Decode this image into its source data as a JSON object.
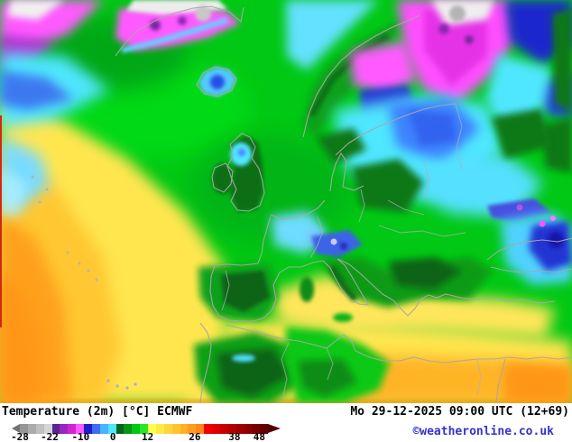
{
  "legend": {
    "title": "Temperature (2m) [°C] ECMWF",
    "datetime": "Mo 29-12-2025 09:00 UTC (12+69)",
    "copyright": "©weatheronline.co.uk",
    "copyright_color": "#3333cc",
    "text_color": "#000000",
    "ticks": [
      "-28",
      "-22",
      "-10",
      "0",
      "12",
      "26",
      "38",
      "48"
    ],
    "tick_positions": [
      0.0,
      0.12,
      0.245,
      0.375,
      0.515,
      0.705,
      0.865,
      0.965
    ],
    "arrow_left_color": "#737373",
    "arrow_right_color": "#500000",
    "colors": [
      "#969696",
      "#ababab",
      "#c0c0c0",
      "#d5d5d5",
      "#5a2391",
      "#9628be",
      "#d223d2",
      "#ff5aff",
      "#1e1ec8",
      "#3c6ef0",
      "#46b4ff",
      "#50e6ff",
      "#06641e",
      "#0a9614",
      "#00c814",
      "#28e628",
      "#ffff50",
      "#ffeb46",
      "#ffd73c",
      "#ffc332",
      "#ffaf28",
      "#ff9b1e",
      "#ff8714",
      "#f00000",
      "#dc0000",
      "#c80000",
      "#b40000",
      "#a00000",
      "#8c0000",
      "#780000",
      "#640000"
    ]
  },
  "map": {
    "palette": {
      "ocean_green": "#00c814",
      "warm_yellow": "#ffe650",
      "warm_orange": "#ffaa1e",
      "hot_deep_orange": "#ff9614",
      "cold_cyan": "#50e6ff",
      "cold_blue": "#3c6ef0",
      "very_cold_dark_blue": "#1e28cd",
      "very_cold_magenta": "#ff5aff",
      "extreme_cold_purple": "#9628be",
      "ice_white": "#f0f0f0",
      "ice_gray": "#c0c0c0",
      "land_dark_green": "#0a6e14",
      "coastline_gray": "#a8a8a8"
    }
  }
}
